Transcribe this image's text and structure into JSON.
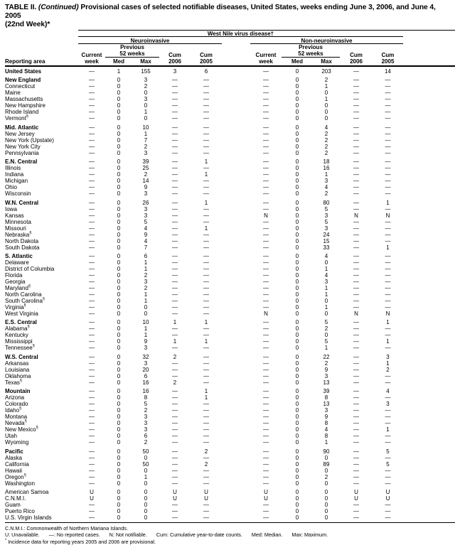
{
  "title": {
    "label": "TABLE II.",
    "continued": "(Continued)",
    "rest": "Provisional cases of selected notifiable diseases, United States, weeks ending June 3, 2006, and June 4, 2005",
    "line2": "(22nd Week)*"
  },
  "header": {
    "disease_spanner": "West Nile virus disease†",
    "reporting_area": "Reporting area",
    "group_neuro": "Neuroinvasive",
    "group_nonneuro": "Non-neuroinvasive",
    "current_line1": "Current",
    "current_line2": "week",
    "previous_line1": "Previous",
    "previous_line2": "52 weeks",
    "med": "Med",
    "max": "Max",
    "cum": "Cum",
    "year2006": "2006",
    "year2005": "2005"
  },
  "rows": [
    {
      "area": "United States",
      "sup": "",
      "bold": true,
      "gap": false,
      "v": [
        "—",
        "1",
        "155",
        "3",
        "6",
        "—",
        "0",
        "203",
        "—",
        "14"
      ]
    },
    {
      "area": "New England",
      "sup": "",
      "bold": true,
      "gap": true,
      "v": [
        "—",
        "0",
        "3",
        "—",
        "—",
        "—",
        "0",
        "2",
        "—",
        "—"
      ]
    },
    {
      "area": "Connecticut",
      "sup": "",
      "bold": false,
      "gap": false,
      "v": [
        "—",
        "0",
        "2",
        "—",
        "—",
        "—",
        "0",
        "1",
        "—",
        "—"
      ]
    },
    {
      "area": "Maine",
      "sup": "",
      "bold": false,
      "gap": false,
      "v": [
        "—",
        "0",
        "0",
        "—",
        "—",
        "—",
        "0",
        "0",
        "—",
        "—"
      ]
    },
    {
      "area": "Massachusetts",
      "sup": "",
      "bold": false,
      "gap": false,
      "v": [
        "—",
        "0",
        "3",
        "—",
        "—",
        "—",
        "0",
        "1",
        "—",
        "—"
      ]
    },
    {
      "area": "New Hampshire",
      "sup": "",
      "bold": false,
      "gap": false,
      "v": [
        "—",
        "0",
        "0",
        "—",
        "—",
        "—",
        "0",
        "0",
        "—",
        "—"
      ]
    },
    {
      "area": "Rhode Island",
      "sup": "",
      "bold": false,
      "gap": false,
      "v": [
        "—",
        "0",
        "1",
        "—",
        "—",
        "—",
        "0",
        "0",
        "—",
        "—"
      ]
    },
    {
      "area": "Vermont",
      "sup": "§",
      "bold": false,
      "gap": false,
      "v": [
        "—",
        "0",
        "0",
        "—",
        "—",
        "—",
        "0",
        "0",
        "—",
        "—"
      ]
    },
    {
      "area": "Mid. Atlantic",
      "sup": "",
      "bold": true,
      "gap": true,
      "v": [
        "—",
        "0",
        "10",
        "—",
        "—",
        "—",
        "0",
        "4",
        "—",
        "—"
      ]
    },
    {
      "area": "New Jersey",
      "sup": "",
      "bold": false,
      "gap": false,
      "v": [
        "—",
        "0",
        "1",
        "—",
        "—",
        "—",
        "0",
        "2",
        "—",
        "—"
      ]
    },
    {
      "area": "New York (Upstate)",
      "sup": "",
      "bold": false,
      "gap": false,
      "v": [
        "—",
        "0",
        "7",
        "—",
        "—",
        "—",
        "0",
        "2",
        "—",
        "—"
      ]
    },
    {
      "area": "New York City",
      "sup": "",
      "bold": false,
      "gap": false,
      "v": [
        "—",
        "0",
        "2",
        "—",
        "—",
        "—",
        "0",
        "2",
        "—",
        "—"
      ]
    },
    {
      "area": "Pennsylvania",
      "sup": "",
      "bold": false,
      "gap": false,
      "v": [
        "—",
        "0",
        "3",
        "—",
        "—",
        "—",
        "0",
        "2",
        "—",
        "—"
      ]
    },
    {
      "area": "E.N. Central",
      "sup": "",
      "bold": true,
      "gap": true,
      "v": [
        "—",
        "0",
        "39",
        "—",
        "1",
        "—",
        "0",
        "18",
        "—",
        "—"
      ]
    },
    {
      "area": "Illinois",
      "sup": "",
      "bold": false,
      "gap": false,
      "v": [
        "—",
        "0",
        "25",
        "—",
        "—",
        "—",
        "0",
        "16",
        "—",
        "—"
      ]
    },
    {
      "area": "Indiana",
      "sup": "",
      "bold": false,
      "gap": false,
      "v": [
        "—",
        "0",
        "2",
        "—",
        "1",
        "—",
        "0",
        "1",
        "—",
        "—"
      ]
    },
    {
      "area": "Michigan",
      "sup": "",
      "bold": false,
      "gap": false,
      "v": [
        "—",
        "0",
        "14",
        "—",
        "—",
        "—",
        "0",
        "3",
        "—",
        "—"
      ]
    },
    {
      "area": "Ohio",
      "sup": "",
      "bold": false,
      "gap": false,
      "v": [
        "—",
        "0",
        "9",
        "—",
        "—",
        "—",
        "0",
        "4",
        "—",
        "—"
      ]
    },
    {
      "area": "Wisconsin",
      "sup": "",
      "bold": false,
      "gap": false,
      "v": [
        "—",
        "0",
        "3",
        "—",
        "—",
        "—",
        "0",
        "2",
        "—",
        "—"
      ]
    },
    {
      "area": "W.N. Central",
      "sup": "",
      "bold": true,
      "gap": true,
      "v": [
        "—",
        "0",
        "26",
        "—",
        "1",
        "—",
        "0",
        "80",
        "—",
        "1"
      ]
    },
    {
      "area": "Iowa",
      "sup": "",
      "bold": false,
      "gap": false,
      "v": [
        "—",
        "0",
        "3",
        "—",
        "—",
        "—",
        "0",
        "5",
        "—",
        "—"
      ]
    },
    {
      "area": "Kansas",
      "sup": "",
      "bold": false,
      "gap": false,
      "v": [
        "—",
        "0",
        "3",
        "—",
        "—",
        "N",
        "0",
        "3",
        "N",
        "N"
      ]
    },
    {
      "area": "Minnesota",
      "sup": "",
      "bold": false,
      "gap": false,
      "v": [
        "—",
        "0",
        "5",
        "—",
        "—",
        "—",
        "0",
        "5",
        "—",
        "—"
      ]
    },
    {
      "area": "Missouri",
      "sup": "",
      "bold": false,
      "gap": false,
      "v": [
        "—",
        "0",
        "4",
        "—",
        "1",
        "—",
        "0",
        "3",
        "—",
        "—"
      ]
    },
    {
      "area": "Nebraska",
      "sup": "§",
      "bold": false,
      "gap": false,
      "v": [
        "—",
        "0",
        "9",
        "—",
        "—",
        "—",
        "0",
        "24",
        "—",
        "—"
      ]
    },
    {
      "area": "North Dakota",
      "sup": "",
      "bold": false,
      "gap": false,
      "v": [
        "—",
        "0",
        "4",
        "—",
        "—",
        "—",
        "0",
        "15",
        "—",
        "—"
      ]
    },
    {
      "area": "South Dakota",
      "sup": "",
      "bold": false,
      "gap": false,
      "v": [
        "—",
        "0",
        "7",
        "—",
        "—",
        "—",
        "0",
        "33",
        "—",
        "1"
      ]
    },
    {
      "area": "S. Atlantic",
      "sup": "",
      "bold": true,
      "gap": true,
      "v": [
        "—",
        "0",
        "6",
        "—",
        "—",
        "—",
        "0",
        "4",
        "—",
        "—"
      ]
    },
    {
      "area": "Delaware",
      "sup": "",
      "bold": false,
      "gap": false,
      "v": [
        "—",
        "0",
        "1",
        "—",
        "—",
        "—",
        "0",
        "0",
        "—",
        "—"
      ]
    },
    {
      "area": "District of Columbia",
      "sup": "",
      "bold": false,
      "gap": false,
      "v": [
        "—",
        "0",
        "1",
        "—",
        "—",
        "—",
        "0",
        "1",
        "—",
        "—"
      ]
    },
    {
      "area": "Florida",
      "sup": "",
      "bold": false,
      "gap": false,
      "v": [
        "—",
        "0",
        "2",
        "—",
        "—",
        "—",
        "0",
        "4",
        "—",
        "—"
      ]
    },
    {
      "area": "Georgia",
      "sup": "",
      "bold": false,
      "gap": false,
      "v": [
        "—",
        "0",
        "3",
        "—",
        "—",
        "—",
        "0",
        "3",
        "—",
        "—"
      ]
    },
    {
      "area": "Maryland",
      "sup": "§",
      "bold": false,
      "gap": false,
      "v": [
        "—",
        "0",
        "2",
        "—",
        "—",
        "—",
        "0",
        "1",
        "—",
        "—"
      ]
    },
    {
      "area": "North Carolina",
      "sup": "",
      "bold": false,
      "gap": false,
      "v": [
        "—",
        "0",
        "1",
        "—",
        "—",
        "—",
        "0",
        "1",
        "—",
        "—"
      ]
    },
    {
      "area": "South Carolina",
      "sup": "§",
      "bold": false,
      "gap": false,
      "v": [
        "—",
        "0",
        "1",
        "—",
        "—",
        "—",
        "0",
        "0",
        "—",
        "—"
      ]
    },
    {
      "area": "Virginia",
      "sup": "§",
      "bold": false,
      "gap": false,
      "v": [
        "—",
        "0",
        "0",
        "—",
        "—",
        "—",
        "0",
        "1",
        "—",
        "—"
      ]
    },
    {
      "area": "West Virginia",
      "sup": "",
      "bold": false,
      "gap": false,
      "v": [
        "—",
        "0",
        "0",
        "—",
        "—",
        "N",
        "0",
        "0",
        "N",
        "N"
      ]
    },
    {
      "area": "E.S. Central",
      "sup": "",
      "bold": true,
      "gap": true,
      "v": [
        "—",
        "0",
        "10",
        "1",
        "1",
        "—",
        "0",
        "5",
        "—",
        "1"
      ]
    },
    {
      "area": "Alabama",
      "sup": "§",
      "bold": false,
      "gap": false,
      "v": [
        "—",
        "0",
        "1",
        "—",
        "—",
        "—",
        "0",
        "2",
        "—",
        "—"
      ]
    },
    {
      "area": "Kentucky",
      "sup": "",
      "bold": false,
      "gap": false,
      "v": [
        "—",
        "0",
        "1",
        "—",
        "—",
        "—",
        "0",
        "0",
        "—",
        "—"
      ]
    },
    {
      "area": "Mississippi",
      "sup": "",
      "bold": false,
      "gap": false,
      "v": [
        "—",
        "0",
        "9",
        "1",
        "1",
        "—",
        "0",
        "5",
        "—",
        "1"
      ]
    },
    {
      "area": "Tennessee",
      "sup": "§",
      "bold": false,
      "gap": false,
      "v": [
        "—",
        "0",
        "3",
        "—",
        "—",
        "—",
        "0",
        "1",
        "—",
        "—"
      ]
    },
    {
      "area": "W.S. Central",
      "sup": "",
      "bold": true,
      "gap": true,
      "v": [
        "—",
        "0",
        "32",
        "2",
        "—",
        "—",
        "0",
        "22",
        "—",
        "3"
      ]
    },
    {
      "area": "Arkansas",
      "sup": "",
      "bold": false,
      "gap": false,
      "v": [
        "—",
        "0",
        "3",
        "—",
        "—",
        "—",
        "0",
        "2",
        "—",
        "1"
      ]
    },
    {
      "area": "Louisiana",
      "sup": "",
      "bold": false,
      "gap": false,
      "v": [
        "—",
        "0",
        "20",
        "—",
        "—",
        "—",
        "0",
        "9",
        "—",
        "2"
      ]
    },
    {
      "area": "Oklahoma",
      "sup": "",
      "bold": false,
      "gap": false,
      "v": [
        "—",
        "0",
        "6",
        "—",
        "—",
        "—",
        "0",
        "3",
        "—",
        "—"
      ]
    },
    {
      "area": "Texas",
      "sup": "§",
      "bold": false,
      "gap": false,
      "v": [
        "—",
        "0",
        "16",
        "2",
        "—",
        "—",
        "0",
        "13",
        "—",
        "—"
      ]
    },
    {
      "area": "Mountain",
      "sup": "",
      "bold": true,
      "gap": true,
      "v": [
        "—",
        "0",
        "16",
        "—",
        "1",
        "—",
        "0",
        "39",
        "—",
        "4"
      ]
    },
    {
      "area": "Arizona",
      "sup": "",
      "bold": false,
      "gap": false,
      "v": [
        "—",
        "0",
        "8",
        "—",
        "1",
        "—",
        "0",
        "8",
        "—",
        "—"
      ]
    },
    {
      "area": "Colorado",
      "sup": "",
      "bold": false,
      "gap": false,
      "v": [
        "—",
        "0",
        "5",
        "—",
        "—",
        "—",
        "0",
        "13",
        "—",
        "3"
      ]
    },
    {
      "area": "Idaho",
      "sup": "§",
      "bold": false,
      "gap": false,
      "v": [
        "—",
        "0",
        "2",
        "—",
        "—",
        "—",
        "0",
        "3",
        "—",
        "—"
      ]
    },
    {
      "area": "Montana",
      "sup": "",
      "bold": false,
      "gap": false,
      "v": [
        "—",
        "0",
        "3",
        "—",
        "—",
        "—",
        "0",
        "9",
        "—",
        "—"
      ]
    },
    {
      "area": "Nevada",
      "sup": "§",
      "bold": false,
      "gap": false,
      "v": [
        "—",
        "0",
        "3",
        "—",
        "—",
        "—",
        "0",
        "8",
        "—",
        "—"
      ]
    },
    {
      "area": "New Mexico",
      "sup": "§",
      "bold": false,
      "gap": false,
      "v": [
        "—",
        "0",
        "3",
        "—",
        "—",
        "—",
        "0",
        "4",
        "—",
        "1"
      ]
    },
    {
      "area": "Utah",
      "sup": "",
      "bold": false,
      "gap": false,
      "v": [
        "—",
        "0",
        "6",
        "—",
        "—",
        "—",
        "0",
        "8",
        "—",
        "—"
      ]
    },
    {
      "area": "Wyoming",
      "sup": "",
      "bold": false,
      "gap": false,
      "v": [
        "—",
        "0",
        "2",
        "—",
        "—",
        "—",
        "0",
        "1",
        "—",
        "—"
      ]
    },
    {
      "area": "Pacific",
      "sup": "",
      "bold": true,
      "gap": true,
      "v": [
        "—",
        "0",
        "50",
        "—",
        "2",
        "—",
        "0",
        "90",
        "—",
        "5"
      ]
    },
    {
      "area": "Alaska",
      "sup": "",
      "bold": false,
      "gap": false,
      "v": [
        "—",
        "0",
        "0",
        "—",
        "—",
        "—",
        "0",
        "0",
        "—",
        "—"
      ]
    },
    {
      "area": "California",
      "sup": "",
      "bold": false,
      "gap": false,
      "v": [
        "—",
        "0",
        "50",
        "—",
        "2",
        "—",
        "0",
        "89",
        "—",
        "5"
      ]
    },
    {
      "area": "Hawaii",
      "sup": "",
      "bold": false,
      "gap": false,
      "v": [
        "—",
        "0",
        "0",
        "—",
        "—",
        "—",
        "0",
        "0",
        "—",
        "—"
      ]
    },
    {
      "area": "Oregon",
      "sup": "§",
      "bold": false,
      "gap": false,
      "v": [
        "—",
        "0",
        "1",
        "—",
        "—",
        "—",
        "0",
        "2",
        "—",
        "—"
      ]
    },
    {
      "area": "Washington",
      "sup": "",
      "bold": false,
      "gap": false,
      "v": [
        "—",
        "0",
        "0",
        "—",
        "—",
        "—",
        "0",
        "0",
        "—",
        "—"
      ]
    },
    {
      "area": "American Samoa",
      "sup": "",
      "bold": false,
      "gap": true,
      "v": [
        "U",
        "0",
        "0",
        "U",
        "U",
        "U",
        "0",
        "0",
        "U",
        "U"
      ]
    },
    {
      "area": "C.N.M.I.",
      "sup": "",
      "bold": false,
      "gap": false,
      "v": [
        "U",
        "0",
        "0",
        "U",
        "U",
        "U",
        "0",
        "0",
        "U",
        "U"
      ]
    },
    {
      "area": "Guam",
      "sup": "",
      "bold": false,
      "gap": false,
      "v": [
        "—",
        "0",
        "0",
        "—",
        "—",
        "—",
        "0",
        "0",
        "—",
        "—"
      ]
    },
    {
      "area": "Puerto Rico",
      "sup": "",
      "bold": false,
      "gap": false,
      "v": [
        "—",
        "0",
        "0",
        "—",
        "—",
        "—",
        "0",
        "0",
        "—",
        "—"
      ]
    },
    {
      "area": "U.S. Virgin Islands",
      "sup": "",
      "bold": false,
      "gap": false,
      "v": [
        "—",
        "0",
        "0",
        "—",
        "—",
        "—",
        "0",
        "0",
        "—",
        "—"
      ]
    }
  ],
  "footnotes": {
    "cnmi": "C.N.M.I.: Commonwealth of Northern Mariana Islands.",
    "legend": [
      "U: Unavailable.",
      "—: No reported cases.",
      "N: Not notifiable.",
      "Cum: Cumulative year-to-date counts.",
      "Med: Median.",
      "Max: Maximum."
    ],
    "star_mark": "*",
    "star_text": "Incidence data for reporting years 2005 and 2006 are provisional.",
    "dagger_mark": "†",
    "dagger_text": "Updated weekly from reports to the Division of Vector-Borne Infectious Diseases, National Center for Infectious Diseases (ArboNet Surveillance).",
    "section_mark": "§",
    "section_text": "Contains data reported through the National Electronic Disease Surveillance System (NEDSS)."
  }
}
